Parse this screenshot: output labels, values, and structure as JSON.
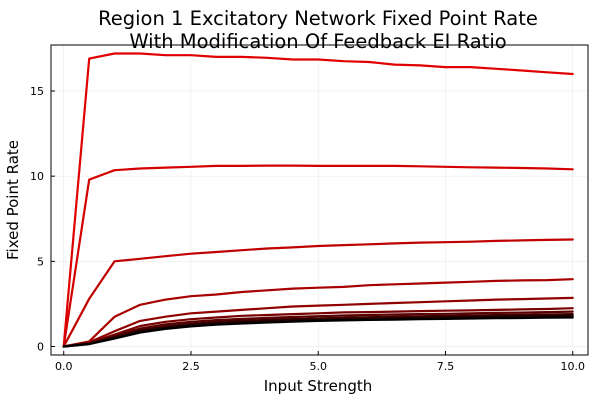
{
  "chart_data": {
    "type": "line",
    "title_line1": "Region 1 Excitatory Network Fixed Point Rate",
    "title_line2": "With Modification Of Feedback EI Ratio",
    "xlabel": "Input Strength",
    "ylabel": "Fixed Point Rate",
    "xlim": [
      -0.25,
      10.3
    ],
    "ylim": [
      -0.5,
      17.7
    ],
    "x_ticks": [
      0.0,
      2.5,
      5.0,
      7.5,
      10.0
    ],
    "x_tick_labels": [
      "0.0",
      "2.5",
      "5.0",
      "7.5",
      "10.0"
    ],
    "y_ticks": [
      0,
      5,
      10,
      15
    ],
    "y_tick_labels": [
      "0",
      "5",
      "10",
      "15"
    ],
    "grid": true,
    "legend": "none",
    "x": [
      0,
      0.5,
      1.0,
      1.5,
      2.0,
      2.5,
      3.0,
      3.5,
      4.0,
      4.5,
      5.0,
      5.5,
      6.0,
      6.5,
      7.0,
      7.5,
      8.0,
      8.5,
      9.0,
      9.5,
      10.0
    ],
    "series": [
      {
        "color": "#e00000",
        "values": [
          0,
          16.9,
          17.2,
          17.2,
          17.1,
          17.1,
          17.0,
          17.0,
          16.95,
          16.85,
          16.85,
          16.75,
          16.7,
          16.55,
          16.5,
          16.4,
          16.4,
          16.3,
          16.2,
          16.1,
          16.0
        ]
      },
      {
        "color": "#d40000",
        "values": [
          0,
          9.8,
          10.35,
          10.45,
          10.5,
          10.55,
          10.6,
          10.6,
          10.62,
          10.62,
          10.6,
          10.6,
          10.6,
          10.6,
          10.58,
          10.55,
          10.52,
          10.5,
          10.48,
          10.45,
          10.4
        ]
      },
      {
        "color": "#c00000",
        "values": [
          0,
          2.8,
          5.0,
          5.15,
          5.3,
          5.45,
          5.55,
          5.65,
          5.75,
          5.82,
          5.9,
          5.95,
          6.0,
          6.05,
          6.1,
          6.12,
          6.15,
          6.2,
          6.23,
          6.26,
          6.28
        ]
      },
      {
        "color": "#a80000",
        "values": [
          0,
          0.3,
          1.75,
          2.45,
          2.75,
          2.95,
          3.05,
          3.2,
          3.3,
          3.4,
          3.45,
          3.5,
          3.6,
          3.65,
          3.7,
          3.75,
          3.8,
          3.85,
          3.88,
          3.9,
          3.95
        ]
      },
      {
        "color": "#900000",
        "values": [
          0,
          0.25,
          0.9,
          1.5,
          1.75,
          1.95,
          2.05,
          2.15,
          2.25,
          2.35,
          2.4,
          2.45,
          2.5,
          2.55,
          2.6,
          2.65,
          2.7,
          2.75,
          2.78,
          2.82,
          2.85
        ]
      },
      {
        "color": "#780000",
        "values": [
          0,
          0.2,
          0.7,
          1.2,
          1.45,
          1.6,
          1.7,
          1.8,
          1.85,
          1.9,
          1.95,
          2.0,
          2.02,
          2.05,
          2.08,
          2.1,
          2.12,
          2.15,
          2.18,
          2.2,
          2.25
        ]
      },
      {
        "color": "#5a0000",
        "values": [
          0,
          0.18,
          0.62,
          1.05,
          1.3,
          1.45,
          1.55,
          1.62,
          1.68,
          1.73,
          1.78,
          1.82,
          1.85,
          1.88,
          1.9,
          1.92,
          1.95,
          1.97,
          1.99,
          2.02,
          2.05
        ]
      },
      {
        "color": "#3c0000",
        "values": [
          0,
          0.16,
          0.55,
          0.95,
          1.18,
          1.33,
          1.43,
          1.5,
          1.56,
          1.61,
          1.65,
          1.69,
          1.72,
          1.75,
          1.77,
          1.8,
          1.82,
          1.84,
          1.86,
          1.88,
          1.9
        ]
      },
      {
        "color": "#200000",
        "values": [
          0,
          0.15,
          0.5,
          0.88,
          1.1,
          1.25,
          1.35,
          1.42,
          1.48,
          1.53,
          1.57,
          1.6,
          1.63,
          1.66,
          1.68,
          1.7,
          1.72,
          1.74,
          1.76,
          1.78,
          1.8
        ]
      },
      {
        "color": "#000000",
        "values": [
          0,
          0.14,
          0.46,
          0.82,
          1.03,
          1.18,
          1.28,
          1.35,
          1.41,
          1.46,
          1.5,
          1.53,
          1.56,
          1.58,
          1.6,
          1.62,
          1.64,
          1.66,
          1.67,
          1.69,
          1.7
        ]
      }
    ]
  }
}
